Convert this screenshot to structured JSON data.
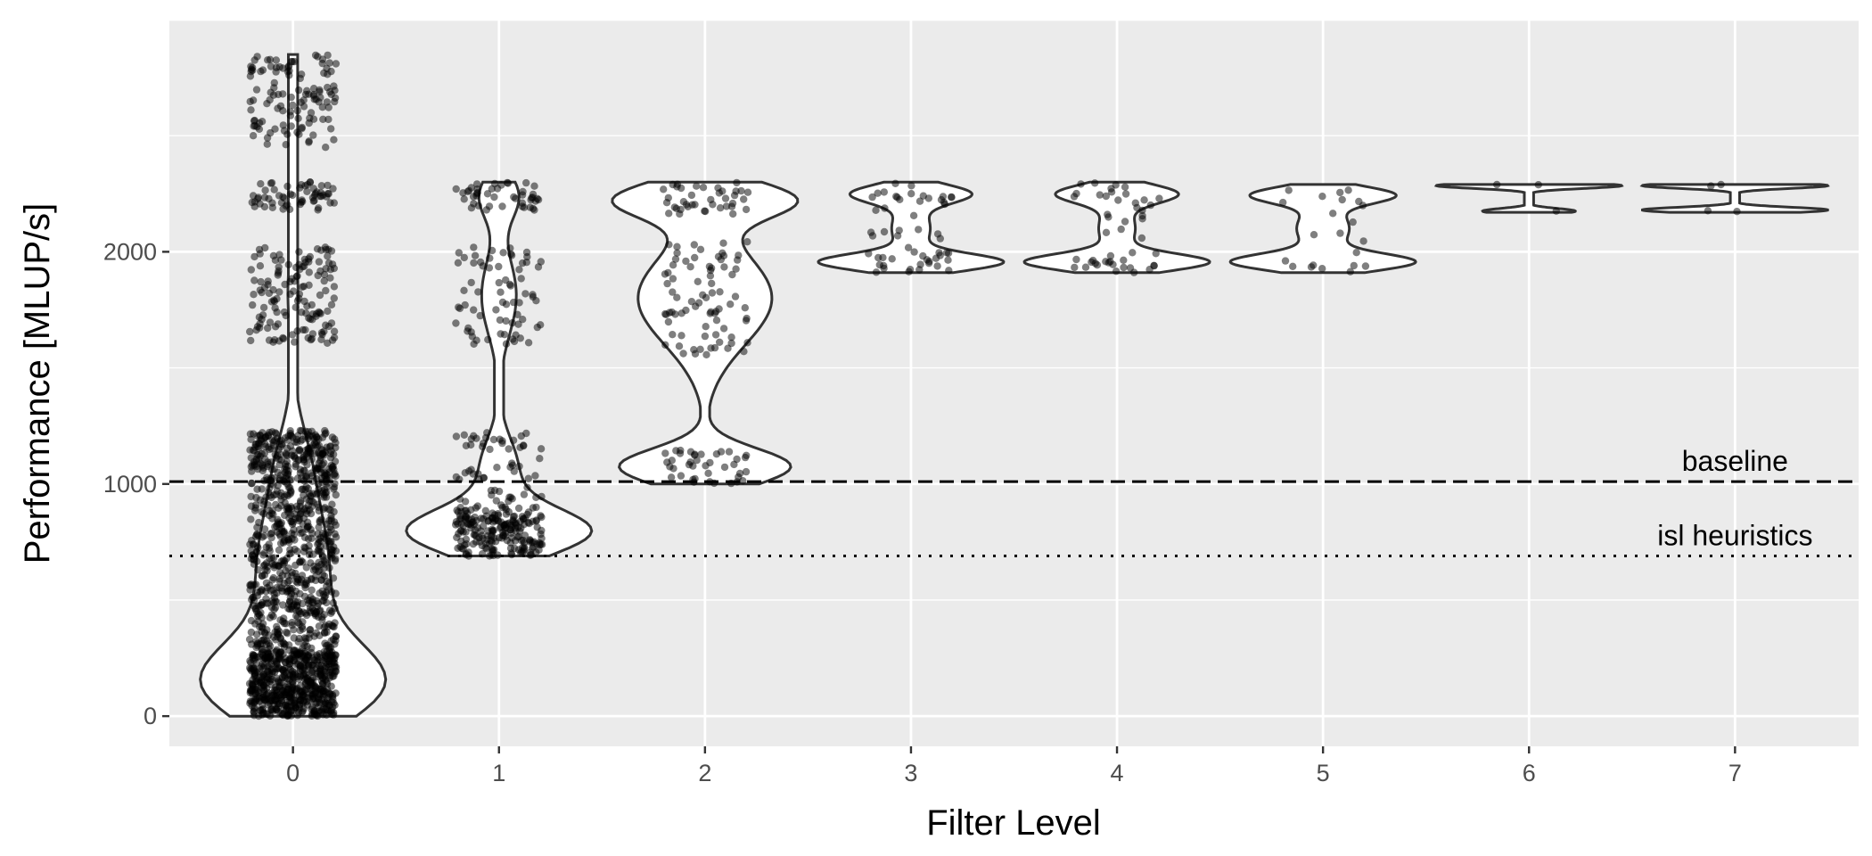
{
  "chart_data": {
    "type": "violin",
    "xlabel": "Filter Level",
    "ylabel": "Performance [MLUP/s]",
    "categories": [
      "0",
      "1",
      "2",
      "3",
      "4",
      "5",
      "6",
      "7"
    ],
    "x_ticks": [
      "0",
      "1",
      "2",
      "3",
      "4",
      "5",
      "6",
      "7"
    ],
    "y_ticks": [
      0,
      1000,
      2000
    ],
    "ylim": [
      -130,
      3000
    ],
    "grid": true,
    "legend": "none",
    "colors": {
      "panel": "#ebebeb",
      "grid": "#ffffff",
      "violin_fill": "#ffffff",
      "violin_stroke": "#333333",
      "points": "#000000",
      "reference": "#000000"
    },
    "reference_lines": [
      {
        "label": "baseline",
        "value": 1010,
        "style": "dashed"
      },
      {
        "label": "isl heuristics",
        "value": 690,
        "style": "dotted"
      }
    ],
    "groups": [
      {
        "category": "0",
        "range": [
          0,
          2850
        ],
        "clusters": [
          {
            "min": 0,
            "max": 280,
            "count": 2400
          },
          {
            "min": 280,
            "max": 1000,
            "count": 1700
          },
          {
            "min": 1000,
            "max": 1230,
            "count": 260
          },
          {
            "min": 1600,
            "max": 2020,
            "count": 140
          },
          {
            "min": 2180,
            "max": 2300,
            "count": 60
          },
          {
            "min": 2450,
            "max": 2850,
            "count": 120
          }
        ]
      },
      {
        "category": "1",
        "range": [
          690,
          2300
        ],
        "clusters": [
          {
            "min": 690,
            "max": 900,
            "count": 210
          },
          {
            "min": 900,
            "max": 1230,
            "count": 60
          },
          {
            "min": 1600,
            "max": 2020,
            "count": 70
          },
          {
            "min": 2180,
            "max": 2300,
            "count": 45
          }
        ]
      },
      {
        "category": "2",
        "range": [
          1000,
          2300
        ],
        "clusters": [
          {
            "min": 1000,
            "max": 1150,
            "count": 40
          },
          {
            "min": 1550,
            "max": 2050,
            "count": 80
          },
          {
            "min": 2150,
            "max": 2300,
            "count": 40
          }
        ]
      },
      {
        "category": "3",
        "range": [
          1910,
          2300
        ],
        "clusters": [
          {
            "min": 1910,
            "max": 2000,
            "count": 25
          },
          {
            "min": 2000,
            "max": 2200,
            "count": 12
          },
          {
            "min": 2200,
            "max": 2300,
            "count": 18
          }
        ]
      },
      {
        "category": "4",
        "range": [
          1910,
          2300
        ],
        "clusters": [
          {
            "min": 1910,
            "max": 2000,
            "count": 22
          },
          {
            "min": 2000,
            "max": 2200,
            "count": 10
          },
          {
            "min": 2200,
            "max": 2300,
            "count": 16
          }
        ]
      },
      {
        "category": "5",
        "range": [
          1910,
          2290
        ],
        "clusters": [
          {
            "min": 1910,
            "max": 2000,
            "count": 9
          },
          {
            "min": 2000,
            "max": 2200,
            "count": 6
          },
          {
            "min": 2200,
            "max": 2290,
            "count": 7
          }
        ]
      },
      {
        "category": "6",
        "range": [
          2170,
          2290
        ],
        "clusters": [
          {
            "min": 2170,
            "max": 2180,
            "count": 1
          },
          {
            "min": 2280,
            "max": 2290,
            "count": 2
          }
        ]
      },
      {
        "category": "7",
        "range": [
          2170,
          2290
        ],
        "clusters": [
          {
            "min": 2170,
            "max": 2190,
            "count": 2
          },
          {
            "min": 2280,
            "max": 2290,
            "count": 2
          }
        ]
      }
    ]
  }
}
